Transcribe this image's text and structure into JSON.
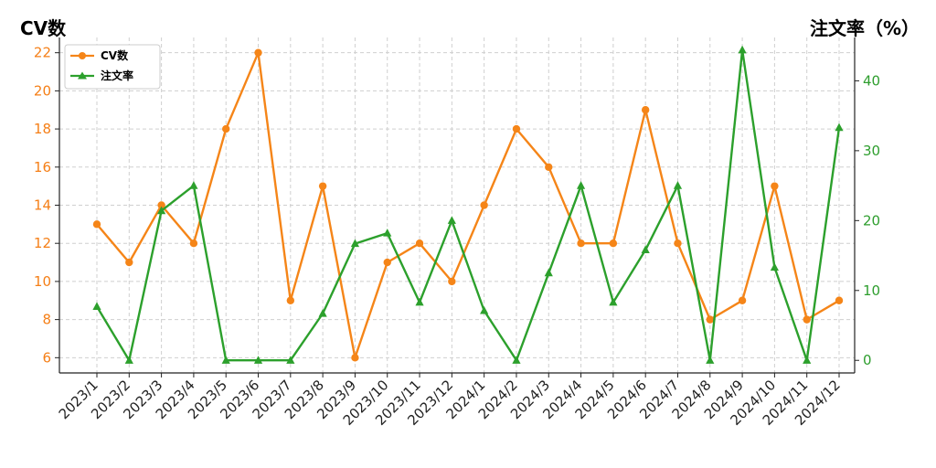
{
  "chart_data": {
    "type": "line",
    "left_axis_title": "CV数",
    "right_axis_title": "注文率（%）",
    "categories": [
      "2023/1",
      "2023/2",
      "2023/3",
      "2023/4",
      "2023/5",
      "2023/6",
      "2023/7",
      "2023/8",
      "2023/9",
      "2023/10",
      "2023/11",
      "2023/12",
      "2024/1",
      "2024/2",
      "2024/3",
      "2024/4",
      "2024/5",
      "2024/6",
      "2024/7",
      "2024/8",
      "2024/9",
      "2024/10",
      "2024/11",
      "2024/12"
    ],
    "left_ticks": [
      "6",
      "8",
      "10",
      "12",
      "14",
      "16",
      "18",
      "20",
      "22"
    ],
    "right_ticks": [
      "0",
      "10",
      "20",
      "30",
      "40"
    ],
    "ylim_left": [
      5.2,
      22.8
    ],
    "ylim_right": [
      -1.8,
      46.2
    ],
    "grid": true,
    "legend_position": "top-left",
    "series": [
      {
        "name": "CV数",
        "axis": "left",
        "color": "#f58518",
        "marker": "circle",
        "values": [
          13,
          11,
          14,
          12,
          18,
          22,
          9,
          15,
          6,
          11,
          12,
          10,
          14,
          18,
          16,
          12,
          12,
          19,
          12,
          8,
          9,
          15,
          8,
          9
        ]
      },
      {
        "name": "注文率",
        "axis": "right",
        "color": "#2ca02c",
        "marker": "triangle",
        "values": [
          7.7,
          0,
          21.4,
          25,
          0,
          0,
          0,
          6.7,
          16.7,
          18.2,
          8.3,
          20,
          7.1,
          0,
          12.5,
          25,
          8.3,
          15.8,
          25,
          0,
          44.4,
          13.3,
          0,
          33.3
        ]
      }
    ]
  }
}
